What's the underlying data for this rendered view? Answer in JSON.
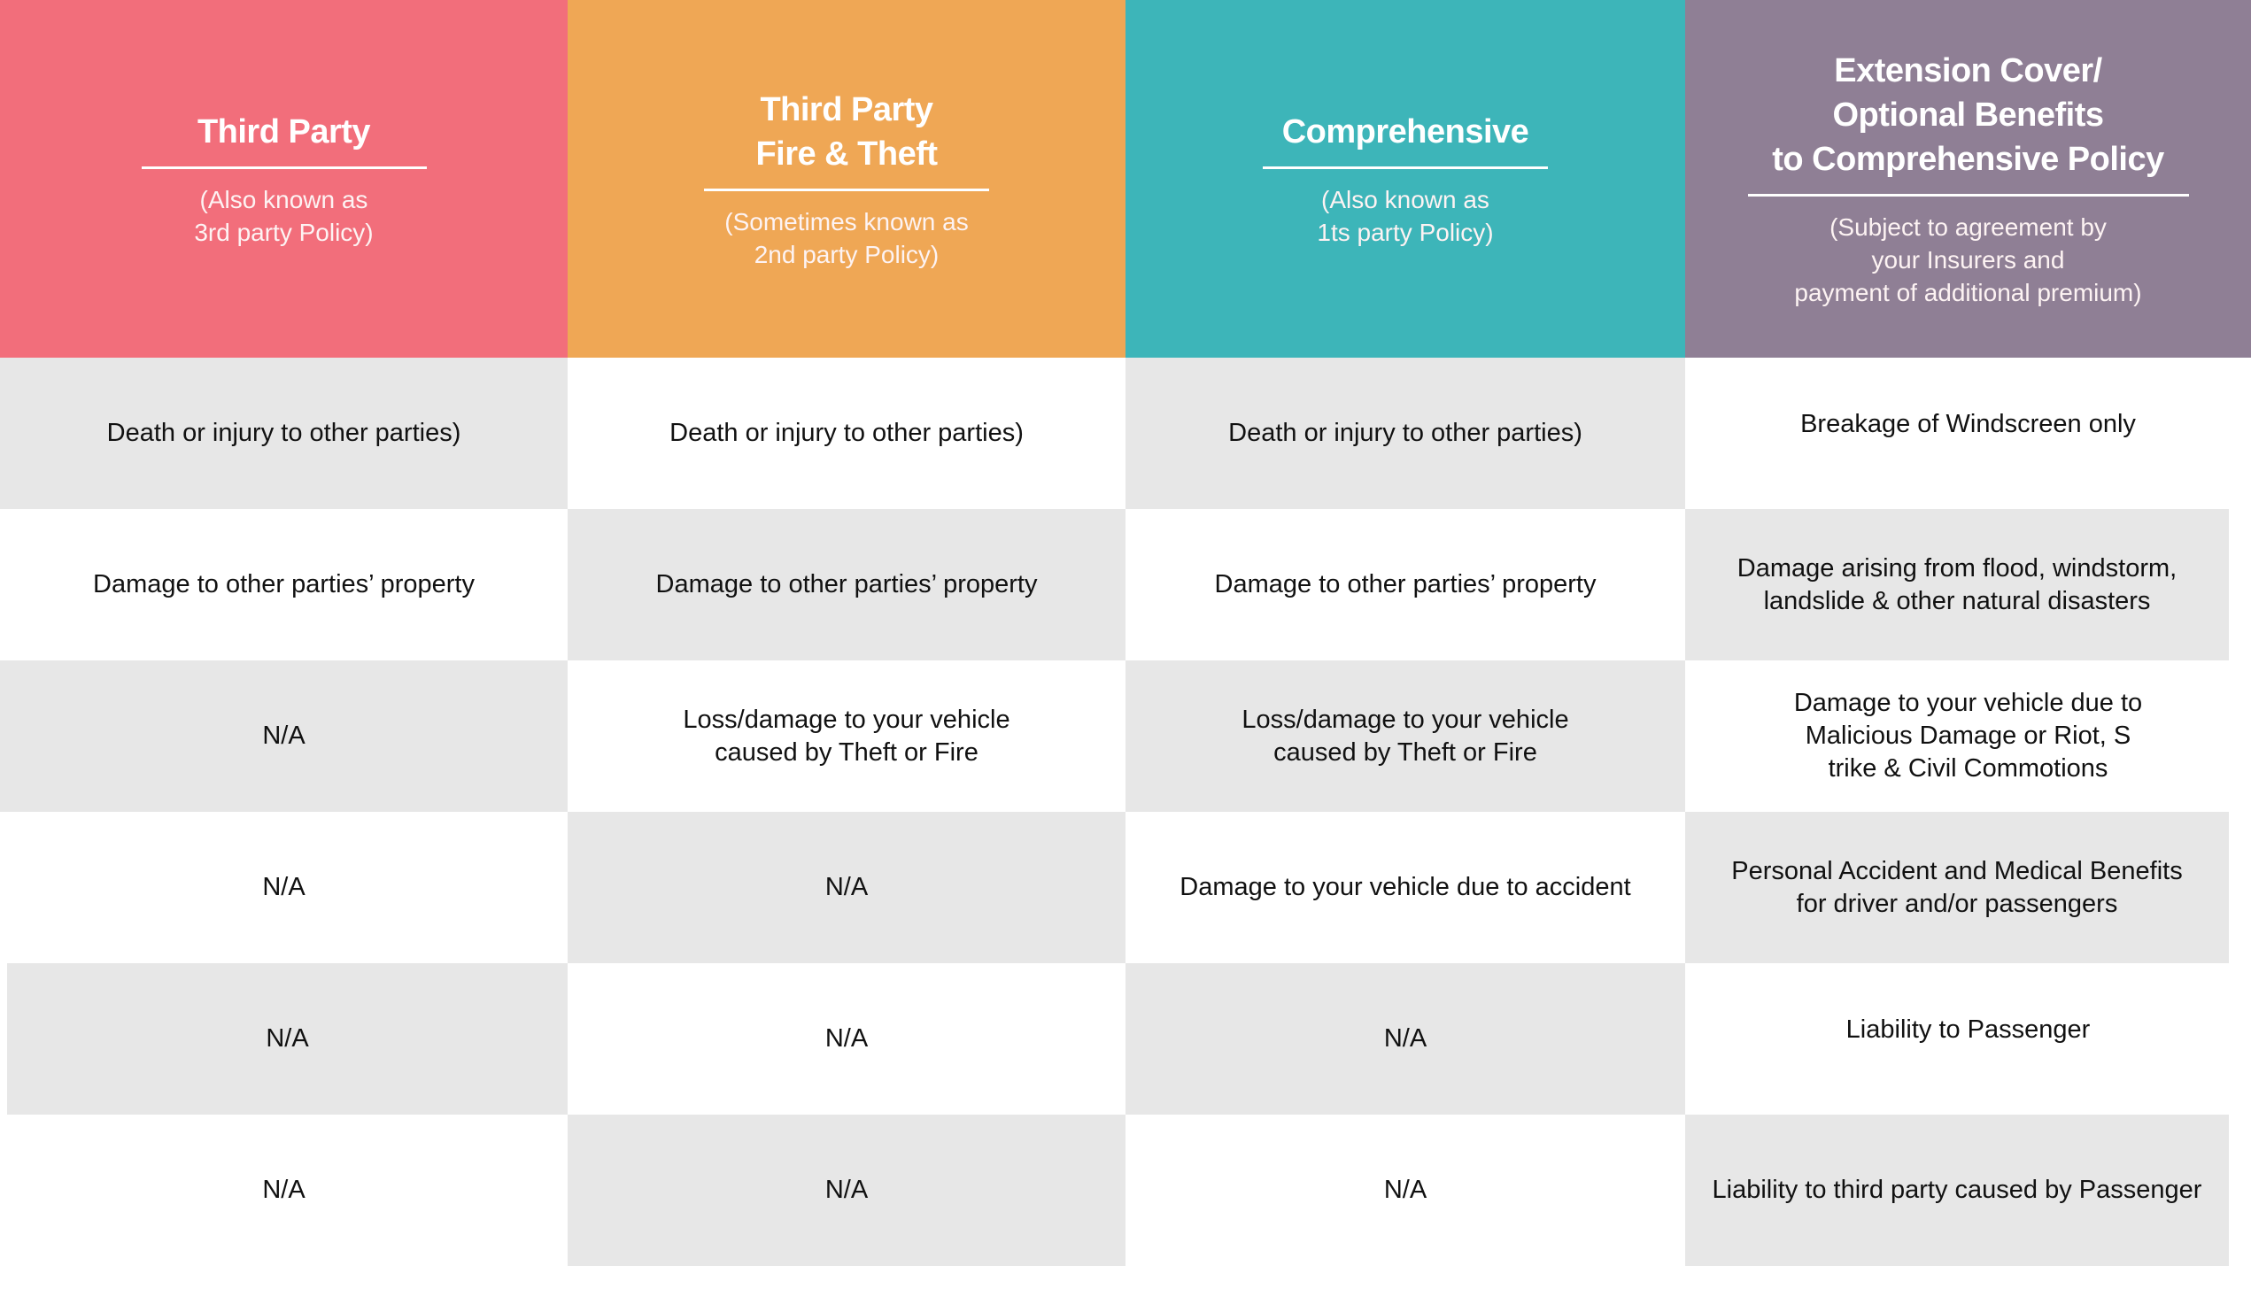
{
  "colors": {
    "third_party": "#f26e7b",
    "fire_theft": "#efa755",
    "comprehensive": "#3db5b9",
    "extension": "#8f7f95",
    "row_gray": "#e7e7e7"
  },
  "columns": [
    {
      "title_lines": [
        "Third Party"
      ],
      "subtitle_lines": [
        "(Also known as",
        "3rd party Policy)"
      ]
    },
    {
      "title_lines": [
        "Third Party",
        "Fire & Theft"
      ],
      "subtitle_lines": [
        "(Sometimes known as",
        "2nd party Policy)"
      ]
    },
    {
      "title_lines": [
        "Comprehensive"
      ],
      "subtitle_lines": [
        "(Also known as",
        "1ts party Policy)"
      ]
    },
    {
      "title_lines": [
        "Extension Cover/",
        "Optional Benefits",
        "to Comprehensive Policy"
      ],
      "subtitle_lines": [
        "(Subject to agreement by",
        "your Insurers and",
        "payment of additional premium)"
      ]
    }
  ],
  "rows": [
    [
      "Death or injury to other parties)",
      "Death or injury to other parties)",
      "Death or injury to other parties)",
      "Breakage of Windscreen only"
    ],
    [
      "Damage to other parties’ property",
      "Damage to other parties’ property",
      "Damage to other parties’ property",
      "Damage arising from flood, windstorm,\nlandslide & other natural disasters"
    ],
    [
      "N/A",
      "Loss/damage to your vehicle\ncaused by Theft or Fire",
      "Loss/damage to your vehicle\ncaused by Theft or Fire",
      "Damage to your vehicle due to\nMalicious Damage or Riot, S\ntrike & Civil Commotions"
    ],
    [
      "N/A",
      "N/A",
      "Damage to your vehicle due to accident",
      "Personal Accident and Medical Benefits\nfor driver and/or passengers"
    ],
    [
      "N/A",
      "N/A",
      "N/A",
      "Liability to Passenger"
    ],
    [
      "N/A",
      "N/A",
      "N/A",
      "Liability to third party caused by Passenger"
    ]
  ]
}
